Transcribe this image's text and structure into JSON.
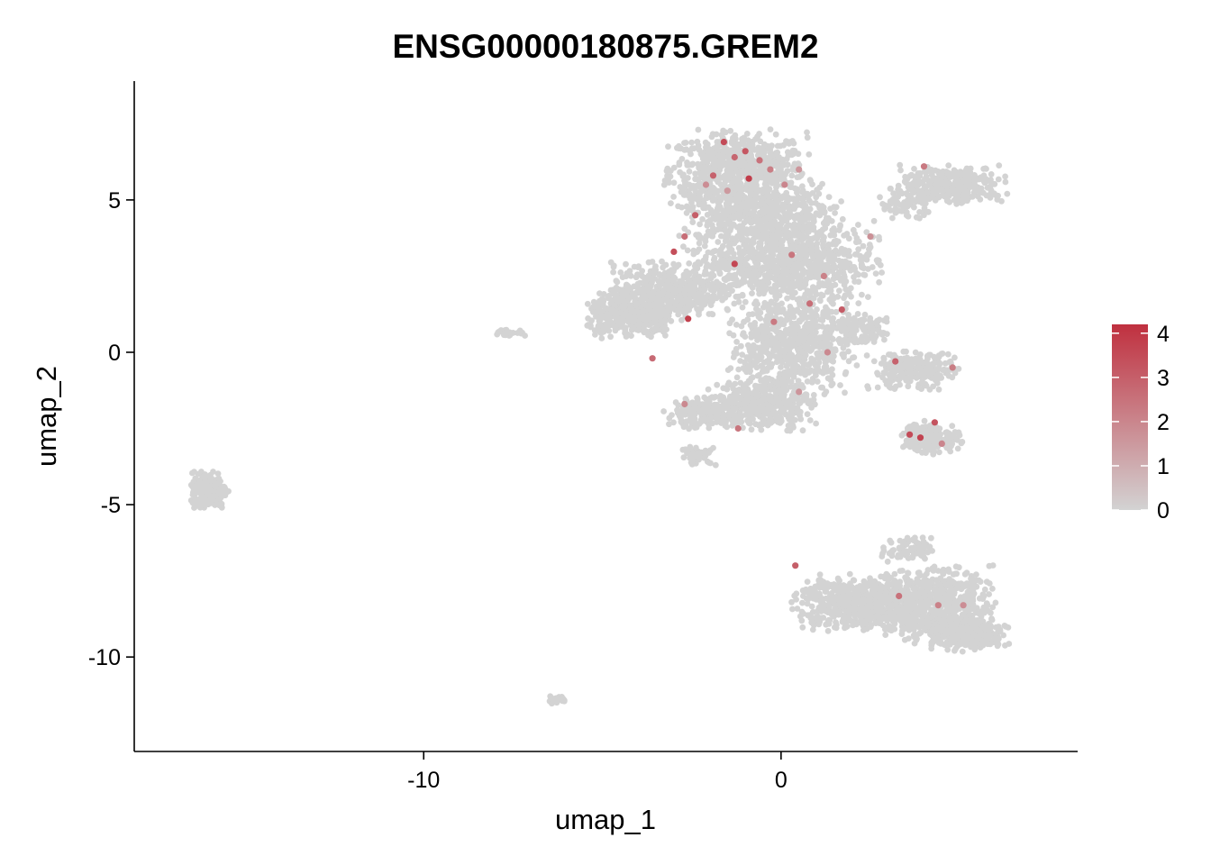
{
  "chart_data": {
    "type": "scatter",
    "title": "ENSG00000180875.GREM2",
    "xlabel": "umap_1",
    "ylabel": "umap_2",
    "xlim": [
      -18.1,
      8.3
    ],
    "ylim": [
      -13.1,
      8.9
    ],
    "x_ticks": [
      {
        "value": -10,
        "label": "-10"
      },
      {
        "value": 0,
        "label": "0"
      }
    ],
    "y_ticks": [
      {
        "value": 5,
        "label": "5"
      },
      {
        "value": 0,
        "label": "0"
      },
      {
        "value": -5,
        "label": "-5"
      },
      {
        "value": -10,
        "label": "-10"
      }
    ],
    "color_scale": {
      "low_color": "#d3d3d3",
      "high_color": "#c0303f",
      "min": 0,
      "max": 4.2,
      "ticks": [
        {
          "value": 0,
          "label": "0"
        },
        {
          "value": 1,
          "label": "1"
        },
        {
          "value": 2,
          "label": "2"
        },
        {
          "value": 3,
          "label": "3"
        },
        {
          "value": 4,
          "label": "4"
        }
      ],
      "legend_position": "right"
    },
    "clusters": [
      {
        "cx": -1.2,
        "cy": 6.0,
        "rx": 1.9,
        "ry": 1.2,
        "n": 700
      },
      {
        "cx": -0.6,
        "cy": 4.6,
        "rx": 2.1,
        "ry": 0.9,
        "n": 500
      },
      {
        "cx": 0.0,
        "cy": 3.0,
        "rx": 2.6,
        "ry": 1.3,
        "n": 900
      },
      {
        "cx": -3.2,
        "cy": 2.0,
        "rx": 1.5,
        "ry": 0.9,
        "n": 450
      },
      {
        "cx": -4.2,
        "cy": 1.2,
        "rx": 1.2,
        "ry": 0.7,
        "n": 400
      },
      {
        "cx": 0.3,
        "cy": 0.3,
        "rx": 1.7,
        "ry": 1.6,
        "n": 700
      },
      {
        "cx": -0.5,
        "cy": -1.7,
        "rx": 1.4,
        "ry": 0.8,
        "n": 400
      },
      {
        "cx": -2.2,
        "cy": -2.0,
        "rx": 1.0,
        "ry": 0.5,
        "n": 200
      },
      {
        "cx": -2.3,
        "cy": -3.4,
        "rx": 0.5,
        "ry": 0.3,
        "n": 40
      },
      {
        "cx": 4.8,
        "cy": 5.5,
        "rx": 1.4,
        "ry": 0.6,
        "n": 320
      },
      {
        "cx": 3.5,
        "cy": 4.9,
        "rx": 0.8,
        "ry": 0.5,
        "n": 80
      },
      {
        "cx": 3.7,
        "cy": -0.6,
        "rx": 1.2,
        "ry": 0.6,
        "n": 260
      },
      {
        "cx": 4.2,
        "cy": -2.8,
        "rx": 0.8,
        "ry": 0.5,
        "n": 180
      },
      {
        "cx": 2.3,
        "cy": 0.7,
        "rx": 0.9,
        "ry": 0.5,
        "n": 120
      },
      {
        "cx": 2.0,
        "cy": -8.2,
        "rx": 1.6,
        "ry": 0.9,
        "n": 500
      },
      {
        "cx": 4.2,
        "cy": -8.3,
        "rx": 1.7,
        "ry": 1.2,
        "n": 750
      },
      {
        "cx": 5.3,
        "cy": -9.3,
        "rx": 1.0,
        "ry": 0.5,
        "n": 250
      },
      {
        "cx": 3.5,
        "cy": -6.5,
        "rx": 0.7,
        "ry": 0.4,
        "n": 80
      },
      {
        "cx": -16.0,
        "cy": -4.5,
        "rx": 0.5,
        "ry": 0.55,
        "n": 260
      },
      {
        "cx": -7.6,
        "cy": 0.65,
        "rx": 0.5,
        "ry": 0.12,
        "n": 30
      },
      {
        "cx": -6.3,
        "cy": -11.4,
        "rx": 0.3,
        "ry": 0.12,
        "n": 20
      }
    ],
    "expressing_points": [
      {
        "x": -1.6,
        "y": 6.9,
        "value": 3.5
      },
      {
        "x": -1.3,
        "y": 6.4,
        "value": 2.8
      },
      {
        "x": -1.0,
        "y": 6.6,
        "value": 3.2
      },
      {
        "x": -0.6,
        "y": 6.3,
        "value": 2.5
      },
      {
        "x": -1.9,
        "y": 5.8,
        "value": 2.9
      },
      {
        "x": -2.1,
        "y": 5.5,
        "value": 1.8
      },
      {
        "x": -0.3,
        "y": 6.0,
        "value": 2.2
      },
      {
        "x": -0.9,
        "y": 5.7,
        "value": 3.9
      },
      {
        "x": -1.5,
        "y": 5.3,
        "value": 1.5
      },
      {
        "x": 0.1,
        "y": 5.5,
        "value": 2.0
      },
      {
        "x": 0.5,
        "y": 6.0,
        "value": 1.6
      },
      {
        "x": -2.4,
        "y": 4.5,
        "value": 3.0
      },
      {
        "x": -2.7,
        "y": 3.8,
        "value": 2.6
      },
      {
        "x": -3.0,
        "y": 3.3,
        "value": 3.4
      },
      {
        "x": -1.3,
        "y": 2.9,
        "value": 3.6
      },
      {
        "x": 0.3,
        "y": 3.2,
        "value": 2.4
      },
      {
        "x": 1.2,
        "y": 2.5,
        "value": 2.1
      },
      {
        "x": 1.7,
        "y": 1.4,
        "value": 3.1
      },
      {
        "x": -2.6,
        "y": 1.1,
        "value": 3.8
      },
      {
        "x": -3.6,
        "y": -0.2,
        "value": 2.7
      },
      {
        "x": 2.5,
        "y": 3.8,
        "value": 1.7
      },
      {
        "x": 4.0,
        "y": 6.1,
        "value": 2.3
      },
      {
        "x": 3.2,
        "y": -0.3,
        "value": 2.9
      },
      {
        "x": 4.8,
        "y": -0.5,
        "value": 2.2
      },
      {
        "x": 4.3,
        "y": -2.3,
        "value": 3.3
      },
      {
        "x": 3.9,
        "y": -2.8,
        "value": 3.7
      },
      {
        "x": 3.6,
        "y": -2.7,
        "value": 3.5
      },
      {
        "x": 4.5,
        "y": -3.0,
        "value": 2.0
      },
      {
        "x": -1.2,
        "y": -2.5,
        "value": 2.4
      },
      {
        "x": -2.7,
        "y": -1.7,
        "value": 1.9
      },
      {
        "x": 0.5,
        "y": -1.3,
        "value": 1.6
      },
      {
        "x": 0.4,
        "y": -7.0,
        "value": 3.0
      },
      {
        "x": 3.3,
        "y": -8.0,
        "value": 2.5
      },
      {
        "x": 4.4,
        "y": -8.3,
        "value": 2.1
      },
      {
        "x": 5.1,
        "y": -8.3,
        "value": 1.8
      },
      {
        "x": 0.8,
        "y": 1.6,
        "value": 2.6
      },
      {
        "x": -0.2,
        "y": 1.0,
        "value": 2.3
      },
      {
        "x": 1.3,
        "y": 0.0,
        "value": 1.9
      }
    ]
  }
}
